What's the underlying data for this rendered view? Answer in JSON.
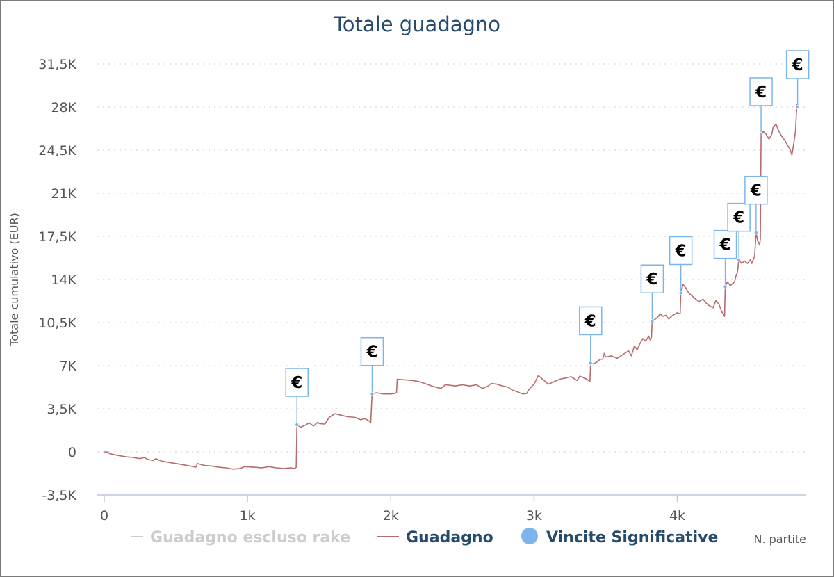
{
  "chart_data": {
    "type": "line",
    "title": "Totale guadagno",
    "ylabel": "Totale cumulativo (EUR)",
    "xlabel": "N. partite",
    "ylim": [
      -3500,
      31500
    ],
    "xlim": [
      0,
      4900
    ],
    "grid": true,
    "y_ticks": [
      {
        "value": -3500,
        "label": "-3,5K"
      },
      {
        "value": 0,
        "label": "0"
      },
      {
        "value": 3500,
        "label": "3,5K"
      },
      {
        "value": 7000,
        "label": "7K"
      },
      {
        "value": 10500,
        "label": "10,5K"
      },
      {
        "value": 14000,
        "label": "14K"
      },
      {
        "value": 17500,
        "label": "17,5K"
      },
      {
        "value": 21000,
        "label": "21K"
      },
      {
        "value": 24500,
        "label": "24,5K"
      },
      {
        "value": 28000,
        "label": "28K"
      },
      {
        "value": 31500,
        "label": "31,5K"
      }
    ],
    "x_ticks": [
      {
        "value": 0,
        "label": "0"
      },
      {
        "value": 1000,
        "label": "1k"
      },
      {
        "value": 2000,
        "label": "2k"
      },
      {
        "value": 3000,
        "label": "3k"
      },
      {
        "value": 4000,
        "label": "4k"
      }
    ],
    "legend": [
      {
        "name": "Guadagno escluso rake",
        "color": "#cccccc",
        "marker": "line",
        "hidden": true
      },
      {
        "name": "Guadagno",
        "color": "#b86b6b",
        "marker": "line"
      },
      {
        "name": "Vincite Significative",
        "color": "#7cb5ec",
        "marker": "circle"
      }
    ],
    "legend_position": "bottom",
    "series": [
      {
        "name": "Guadagno",
        "color": "#b86b6b",
        "points": [
          [
            0,
            0
          ],
          [
            20,
            0
          ],
          [
            40,
            -150
          ],
          [
            100,
            -300
          ],
          [
            150,
            -400
          ],
          [
            200,
            -450
          ],
          [
            250,
            -550
          ],
          [
            280,
            -450
          ],
          [
            300,
            -600
          ],
          [
            340,
            -700
          ],
          [
            360,
            -550
          ],
          [
            400,
            -750
          ],
          [
            450,
            -850
          ],
          [
            500,
            -950
          ],
          [
            550,
            -1050
          ],
          [
            600,
            -1150
          ],
          [
            640,
            -1250
          ],
          [
            650,
            -950
          ],
          [
            700,
            -1100
          ],
          [
            750,
            -1150
          ],
          [
            800,
            -1250
          ],
          [
            850,
            -1300
          ],
          [
            900,
            -1400
          ],
          [
            950,
            -1350
          ],
          [
            980,
            -1200
          ],
          [
            1050,
            -1250
          ],
          [
            1100,
            -1300
          ],
          [
            1150,
            -1200
          ],
          [
            1200,
            -1300
          ],
          [
            1250,
            -1350
          ],
          [
            1300,
            -1300
          ],
          [
            1330,
            -1350
          ],
          [
            1340,
            -1250
          ],
          [
            1345,
            2200
          ],
          [
            1370,
            2000
          ],
          [
            1400,
            2150
          ],
          [
            1430,
            2350
          ],
          [
            1460,
            2100
          ],
          [
            1490,
            2400
          ],
          [
            1500,
            2300
          ],
          [
            1540,
            2250
          ],
          [
            1570,
            2800
          ],
          [
            1610,
            3100
          ],
          [
            1660,
            2950
          ],
          [
            1700,
            2850
          ],
          [
            1750,
            2800
          ],
          [
            1790,
            2600
          ],
          [
            1820,
            2700
          ],
          [
            1850,
            2500
          ],
          [
            1860,
            2350
          ],
          [
            1870,
            4700
          ],
          [
            1900,
            4800
          ],
          [
            1950,
            4700
          ],
          [
            2000,
            4700
          ],
          [
            2030,
            4750
          ],
          [
            2040,
            4800
          ],
          [
            2045,
            5900
          ],
          [
            2100,
            5850
          ],
          [
            2150,
            5800
          ],
          [
            2200,
            5700
          ],
          [
            2250,
            5500
          ],
          [
            2300,
            5300
          ],
          [
            2350,
            5150
          ],
          [
            2380,
            5450
          ],
          [
            2420,
            5400
          ],
          [
            2450,
            5350
          ],
          [
            2500,
            5450
          ],
          [
            2550,
            5350
          ],
          [
            2600,
            5450
          ],
          [
            2640,
            5150
          ],
          [
            2680,
            5350
          ],
          [
            2700,
            5550
          ],
          [
            2740,
            5500
          ],
          [
            2780,
            5350
          ],
          [
            2820,
            5250
          ],
          [
            2850,
            5000
          ],
          [
            2880,
            4900
          ],
          [
            2920,
            4700
          ],
          [
            2950,
            4750
          ],
          [
            2960,
            5000
          ],
          [
            2980,
            5250
          ],
          [
            3000,
            5500
          ],
          [
            3030,
            6200
          ],
          [
            3060,
            5900
          ],
          [
            3100,
            5500
          ],
          [
            3140,
            5700
          ],
          [
            3180,
            5900
          ],
          [
            3220,
            6000
          ],
          [
            3260,
            6100
          ],
          [
            3300,
            5800
          ],
          [
            3320,
            6150
          ],
          [
            3350,
            6000
          ],
          [
            3370,
            5900
          ],
          [
            3390,
            5700
          ],
          [
            3395,
            7200
          ],
          [
            3420,
            7150
          ],
          [
            3440,
            7300
          ],
          [
            3460,
            7500
          ],
          [
            3480,
            7550
          ],
          [
            3490,
            8000
          ],
          [
            3500,
            7700
          ],
          [
            3540,
            7800
          ],
          [
            3580,
            7600
          ],
          [
            3620,
            7900
          ],
          [
            3660,
            8200
          ],
          [
            3680,
            7800
          ],
          [
            3700,
            8600
          ],
          [
            3720,
            8300
          ],
          [
            3740,
            8800
          ],
          [
            3760,
            9200
          ],
          [
            3780,
            9000
          ],
          [
            3800,
            9400
          ],
          [
            3810,
            9100
          ],
          [
            3820,
            9300
          ],
          [
            3825,
            10600
          ],
          [
            3860,
            10900
          ],
          [
            3880,
            11200
          ],
          [
            3900,
            11000
          ],
          [
            3920,
            11100
          ],
          [
            3940,
            10800
          ],
          [
            3970,
            11100
          ],
          [
            4000,
            11300
          ],
          [
            4020,
            11200
          ],
          [
            4025,
            12900
          ],
          [
            4040,
            13600
          ],
          [
            4060,
            13300
          ],
          [
            4080,
            12900
          ],
          [
            4100,
            12700
          ],
          [
            4120,
            12500
          ],
          [
            4150,
            12200
          ],
          [
            4180,
            12400
          ],
          [
            4200,
            12100
          ],
          [
            4220,
            11900
          ],
          [
            4250,
            11700
          ],
          [
            4270,
            12300
          ],
          [
            4290,
            12000
          ],
          [
            4310,
            11400
          ],
          [
            4330,
            11000
          ],
          [
            4335,
            13400
          ],
          [
            4350,
            13800
          ],
          [
            4370,
            13500
          ],
          [
            4400,
            13800
          ],
          [
            4410,
            14300
          ],
          [
            4420,
            14600
          ],
          [
            4430,
            15600
          ],
          [
            4450,
            15300
          ],
          [
            4470,
            15500
          ],
          [
            4490,
            15300
          ],
          [
            4510,
            15600
          ],
          [
            4520,
            15300
          ],
          [
            4540,
            15900
          ],
          [
            4550,
            17800
          ],
          [
            4560,
            17200
          ],
          [
            4575,
            16800
          ],
          [
            4580,
            17300
          ],
          [
            4585,
            25800
          ],
          [
            4600,
            26000
          ],
          [
            4620,
            25800
          ],
          [
            4640,
            25400
          ],
          [
            4660,
            25800
          ],
          [
            4670,
            26400
          ],
          [
            4690,
            26600
          ],
          [
            4710,
            26000
          ],
          [
            4730,
            25600
          ],
          [
            4750,
            25300
          ],
          [
            4770,
            24900
          ],
          [
            4790,
            24500
          ],
          [
            4800,
            24100
          ],
          [
            4815,
            25200
          ],
          [
            4825,
            26000
          ],
          [
            4835,
            28200
          ],
          [
            4840,
            28000
          ]
        ]
      }
    ],
    "markers": [
      {
        "x": 1345,
        "y": 2200,
        "label": "€"
      },
      {
        "x": 1870,
        "y": 4700,
        "label": "€"
      },
      {
        "x": 3395,
        "y": 7200,
        "label": "€"
      },
      {
        "x": 3825,
        "y": 10600,
        "label": "€"
      },
      {
        "x": 4025,
        "y": 12900,
        "label": "€"
      },
      {
        "x": 4335,
        "y": 13400,
        "label": "€"
      },
      {
        "x": 4430,
        "y": 15600,
        "label": "€"
      },
      {
        "x": 4550,
        "y": 17800,
        "label": "€"
      },
      {
        "x": 4585,
        "y": 25800,
        "label": "€"
      },
      {
        "x": 4840,
        "y": 28000,
        "label": "€"
      }
    ]
  }
}
